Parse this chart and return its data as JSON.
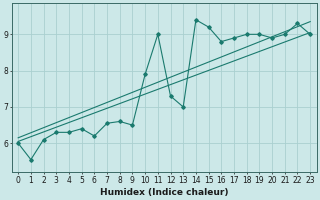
{
  "title": "",
  "xlabel": "Humidex (Indice chaleur)",
  "bg_color": "#cce8e8",
  "grid_color": "#aad0d0",
  "line_color": "#1a7a6e",
  "x_data": [
    0,
    1,
    2,
    3,
    4,
    5,
    6,
    7,
    8,
    9,
    10,
    11,
    12,
    13,
    14,
    15,
    16,
    17,
    18,
    19,
    20,
    21,
    22,
    23
  ],
  "y_main": [
    6.0,
    5.55,
    6.1,
    6.3,
    6.3,
    6.4,
    6.2,
    6.55,
    6.6,
    6.5,
    7.9,
    9.0,
    7.3,
    7.0,
    9.4,
    9.2,
    8.8,
    8.9,
    9.0,
    9.0,
    8.9,
    9.0,
    9.3,
    9.0
  ],
  "line1_x": [
    0,
    23
  ],
  "line1_y": [
    6.05,
    9.05
  ],
  "line2_x": [
    0,
    23
  ],
  "line2_y": [
    6.15,
    9.35
  ],
  "xlim": [
    -0.5,
    23.5
  ],
  "ylim": [
    5.2,
    9.85
  ],
  "yticks": [
    6,
    7,
    8,
    9
  ],
  "xticks": [
    0,
    1,
    2,
    3,
    4,
    5,
    6,
    7,
    8,
    9,
    10,
    11,
    12,
    13,
    14,
    15,
    16,
    17,
    18,
    19,
    20,
    21,
    22,
    23
  ],
  "fontsize_label": 6.5,
  "fontsize_tick": 5.5
}
